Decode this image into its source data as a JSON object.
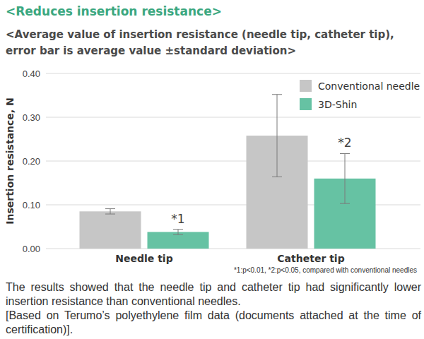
{
  "chart_data": {
    "type": "bar",
    "title": "<Reduces insertion resistance>",
    "subtitle": "<Average value of insertion resistance (needle tip, catheter tip), error bar is average value ±standard deviation>",
    "y_label": "Insertion resistance, N",
    "categories": [
      "Needle tip",
      "Catheter tip"
    ],
    "series": [
      {
        "name": "Conventional needle",
        "color": "#c6c6c6",
        "values": [
          0.085,
          0.258
        ],
        "errors": [
          0.006,
          0.094
        ]
      },
      {
        "name": "3D-Shin",
        "color": "#66c2a3",
        "values": [
          0.038,
          0.16
        ],
        "errors": [
          0.006,
          0.057
        ]
      }
    ],
    "ylim": [
      0,
      0.4
    ],
    "yticks": [
      {
        "value": 0,
        "label": "0.00"
      },
      {
        "value": 0.1,
        "label": "0.10"
      },
      {
        "value": 0.2,
        "label": "0.20"
      },
      {
        "value": 0.3,
        "label": "0.30"
      },
      {
        "value": 0.4,
        "label": "0.40"
      }
    ],
    "grid": true,
    "legend": "upper right",
    "annotations": [
      {
        "text": "*1",
        "category": 0,
        "series": 1
      },
      {
        "text": "*2",
        "category": 1,
        "series": 1
      }
    ],
    "footnote": "*1:p<0.01, *2:p<0.05, compared with conventional needles",
    "caption": [
      "The results showed that the needle tip and catheter tip had significantly lower insertion resistance than conventional needles.",
      "[Based on Terumo’s polyethylene film data (documents attached at the time of certification)]."
    ]
  }
}
